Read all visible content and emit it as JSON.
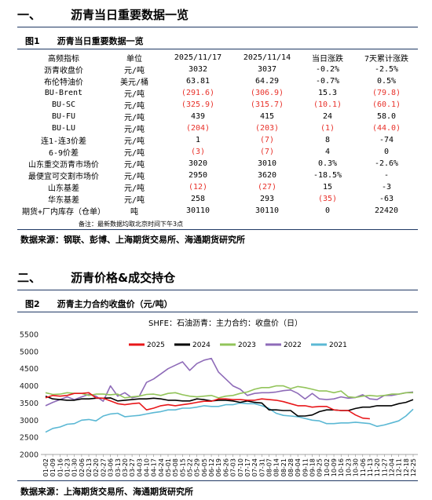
{
  "section1": {
    "num": "一、",
    "title": "沥青当日重要数据一览"
  },
  "fig1": {
    "label": "图1",
    "title": "沥青当日重要数据一览"
  },
  "table": {
    "headers": [
      "高频指标",
      "单位",
      "2025/11/17",
      "2025/11/14",
      "当日涨跌",
      "7天累计涨跌"
    ],
    "rows": [
      {
        "name": "沥青收盘价",
        "unit": "元/吨",
        "v1": "3032",
        "v2": "3037",
        "d": "-0.2%",
        "w": "-2.5%",
        "neg": []
      },
      {
        "name": "布伦特油价",
        "unit": "美元/桶",
        "v1": "63.81",
        "v2": "64.29",
        "d": "-0.7%",
        "w": "0.5%",
        "neg": []
      },
      {
        "name": "BU-Brent",
        "unit": "元/吨",
        "v1": "(291.6)",
        "v2": "(306.9)",
        "d": "15.3",
        "w": "(79.8)",
        "neg": [
          "v1",
          "v2",
          "w"
        ]
      },
      {
        "name": "BU-SC",
        "unit": "元/吨",
        "v1": "(325.9)",
        "v2": "(315.7)",
        "d": "(10.1)",
        "w": "(60.1)",
        "neg": [
          "v1",
          "v2",
          "d",
          "w"
        ]
      },
      {
        "name": "BU-FU",
        "unit": "元/吨",
        "v1": "439",
        "v2": "415",
        "d": "24",
        "w": "58.0",
        "neg": []
      },
      {
        "name": "BU-LU",
        "unit": "元/吨",
        "v1": "(204)",
        "v2": "(203)",
        "d": "(1)",
        "w": "(44.0)",
        "neg": [
          "v1",
          "v2",
          "d",
          "w"
        ]
      },
      {
        "name": "连1-连3价差",
        "unit": "元/吨",
        "v1": "1",
        "v2": "(7)",
        "d": "8",
        "w": "-74",
        "neg": [
          "v2"
        ]
      },
      {
        "name": "6-9价差",
        "unit": "元/吨",
        "v1": "(3)",
        "v2": "(7)",
        "d": "4",
        "w": "0",
        "neg": [
          "v1",
          "v2"
        ]
      },
      {
        "name": "山东重交沥青市场价",
        "unit": "元/吨",
        "v1": "3020",
        "v2": "3010",
        "d": "0.3%",
        "w": "-2.6%",
        "neg": []
      },
      {
        "name": "最便宜可交割市场价",
        "unit": "元/吨",
        "v1": "2950",
        "v2": "3620",
        "d": "-18.5%",
        "w": "-",
        "neg": []
      },
      {
        "name": "山东基差",
        "unit": "元/吨",
        "v1": "(12)",
        "v2": "(27)",
        "d": "15",
        "w": "-3",
        "neg": [
          "v1",
          "v2"
        ]
      },
      {
        "name": "华东基差",
        "unit": "元/吨",
        "v1": "258",
        "v2": "293",
        "d": "(35)",
        "w": "-63",
        "neg": [
          "d"
        ]
      },
      {
        "name": "期货+厂内库存（仓单）",
        "unit": "吨",
        "v1": "30110",
        "v2": "30110",
        "d": "0",
        "w": "22420",
        "neg": []
      }
    ],
    "note": "备注：最新数据均取北京时间下午3点"
  },
  "source1": "数据来源：钢联、彭博、上海期货交易所、海通期货研究所",
  "section2": {
    "num": "二、",
    "title": "沥青价格&成交持仓"
  },
  "fig2": {
    "label": "图2",
    "title": "沥青主力合约收盘价（元/吨）"
  },
  "source2": "数据来源：上海期货交易所、海通期货研究所",
  "chart_data": {
    "type": "line",
    "title": "SHFE：石油沥青：主力合约：收盘价（日）",
    "xlabel": "",
    "ylabel": "",
    "ylim": [
      2000,
      5500
    ],
    "yticks": [
      2000,
      2500,
      3000,
      3500,
      4000,
      4500,
      5000,
      5500
    ],
    "grid": false,
    "legend_position": "top",
    "x": [
      "01-02",
      "01-09",
      "01-16",
      "01-23",
      "01-30",
      "02-06",
      "02-13",
      "02-20",
      "02-27",
      "03-06",
      "03-13",
      "03-20",
      "03-27",
      "04-03",
      "04-10",
      "04-17",
      "04-24",
      "05-01",
      "05-08",
      "05-15",
      "05-22",
      "05-29",
      "06-05",
      "06-12",
      "06-19",
      "06-26",
      "07-03",
      "07-10",
      "07-17",
      "07-24",
      "07-31",
      "08-07",
      "08-14",
      "08-21",
      "08-28",
      "09-04",
      "09-11",
      "09-18",
      "09-25",
      "10-02",
      "10-09",
      "10-16",
      "10-23",
      "10-30",
      "11-06",
      "11-13",
      "11-20",
      "11-27",
      "12-04",
      "12-11",
      "12-18",
      "12-25"
    ],
    "series": [
      {
        "name": "2025",
        "color": "#e8171a",
        "values": [
          3650,
          3720,
          3700,
          3720,
          3780,
          3780,
          3800,
          3650,
          3640,
          3560,
          3480,
          3450,
          3480,
          3500,
          3300,
          3350,
          3420,
          3450,
          3420,
          3450,
          3480,
          3520,
          3550,
          3550,
          3620,
          3620,
          3600,
          3600,
          3580,
          3580,
          3620,
          3600,
          3580,
          3540,
          3480,
          3420,
          3420,
          3380,
          3400,
          3400,
          3300,
          3280,
          3280,
          3150,
          3060,
          3040,
          null,
          null,
          null,
          null,
          null,
          null
        ]
      },
      {
        "name": "2024",
        "color": "#000000",
        "values": [
          3700,
          3620,
          3600,
          3580,
          3580,
          3620,
          3620,
          3640,
          3640,
          3650,
          3560,
          3580,
          3600,
          3620,
          3620,
          3640,
          3620,
          3580,
          3580,
          3560,
          3560,
          3620,
          3600,
          3560,
          3580,
          3580,
          3560,
          3520,
          3560,
          3520,
          3500,
          3300,
          3300,
          3280,
          3280,
          3120,
          3120,
          3150,
          3250,
          3300,
          3300,
          3280,
          3280,
          3340,
          3380,
          3380,
          3420,
          3420,
          3420,
          3480,
          3520,
          3600
        ]
      },
      {
        "name": "2023",
        "color": "#92c45a",
        "values": [
          3800,
          3750,
          3760,
          3800,
          3780,
          3780,
          3720,
          3760,
          3760,
          3740,
          3760,
          3650,
          3680,
          3700,
          3750,
          3760,
          3720,
          3780,
          3800,
          3740,
          3700,
          3680,
          3700,
          3720,
          3650,
          3700,
          3720,
          3780,
          3820,
          3900,
          3950,
          3950,
          4000,
          4000,
          3920,
          3980,
          3950,
          3900,
          3850,
          3850,
          3800,
          3850,
          3680,
          3660,
          3700,
          3720,
          3700,
          3720,
          3760,
          3760,
          3800,
          3800
        ]
      },
      {
        "name": "2022",
        "color": "#8e6bb8",
        "values": [
          3420,
          3520,
          3600,
          3680,
          3600,
          3680,
          3750,
          3700,
          3550,
          4000,
          3700,
          3800,
          3650,
          3700,
          4100,
          4200,
          4350,
          4500,
          4600,
          4700,
          4450,
          4650,
          4750,
          4800,
          4400,
          4200,
          4000,
          3900,
          3720,
          3780,
          3800,
          3800,
          3820,
          3860,
          3880,
          3780,
          3620,
          3780,
          3620,
          3600,
          3620,
          3680,
          3640,
          3660,
          3740,
          3620,
          3600,
          3720,
          3720,
          3760,
          3800,
          3820
        ]
      },
      {
        "name": "2021",
        "color": "#5bb8d4",
        "values": [
          2650,
          2760,
          2800,
          2880,
          2900,
          3000,
          3020,
          2980,
          3120,
          3180,
          3200,
          3100,
          3120,
          3140,
          3180,
          3220,
          3250,
          3300,
          3300,
          3350,
          3350,
          3380,
          3420,
          3400,
          3400,
          3450,
          3450,
          3500,
          3480,
          3480,
          3420,
          3340,
          3200,
          3140,
          3120,
          3100,
          3050,
          3000,
          2980,
          2900,
          2900,
          2920,
          2920,
          2940,
          2920,
          2900,
          2820,
          2860,
          2920,
          2980,
          3120,
          3320
        ]
      }
    ]
  }
}
